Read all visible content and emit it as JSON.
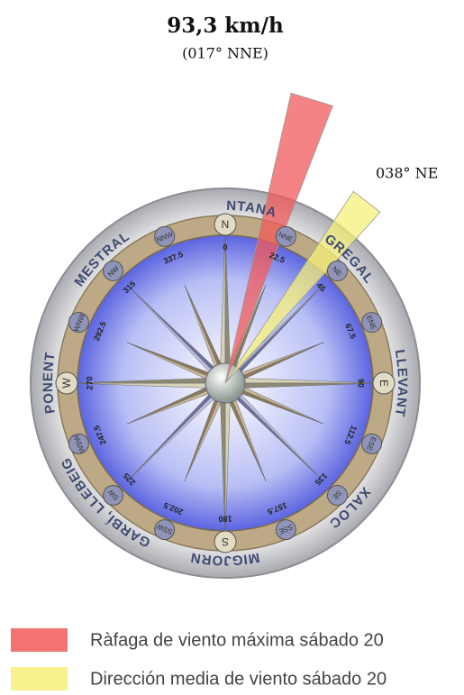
{
  "chart_data": {
    "type": "wind-rose",
    "title": "93,3 km/h",
    "subtitle": "(017° NNE)",
    "annotation": "038° NE",
    "compass_points": [
      "N",
      "NNE",
      "NE",
      "ENE",
      "E",
      "ESE",
      "SE",
      "SSE",
      "S",
      "SSW",
      "SW",
      "WSW",
      "W",
      "WNW",
      "NW",
      "NNW"
    ],
    "degrees": [
      0,
      22.5,
      45,
      67.5,
      90,
      112.5,
      135,
      157.5,
      180,
      202.5,
      225,
      247.5,
      270,
      292.5,
      315,
      337.5
    ],
    "winds": [
      "TRAMUNTANA",
      "GREGAL",
      "LLEVANT",
      "XALOC",
      "MIGJORN",
      "GARBÍ, LLEBEIG",
      "PONENT",
      "MESTRAL"
    ],
    "series": [
      {
        "name": "Ràfaga de viento máxima sábado 20",
        "color": "#f25a5a",
        "value": 17
      },
      {
        "name": "Dirección media de viento sábado 20",
        "color": "#f6f07a",
        "value": 38
      }
    ]
  }
}
